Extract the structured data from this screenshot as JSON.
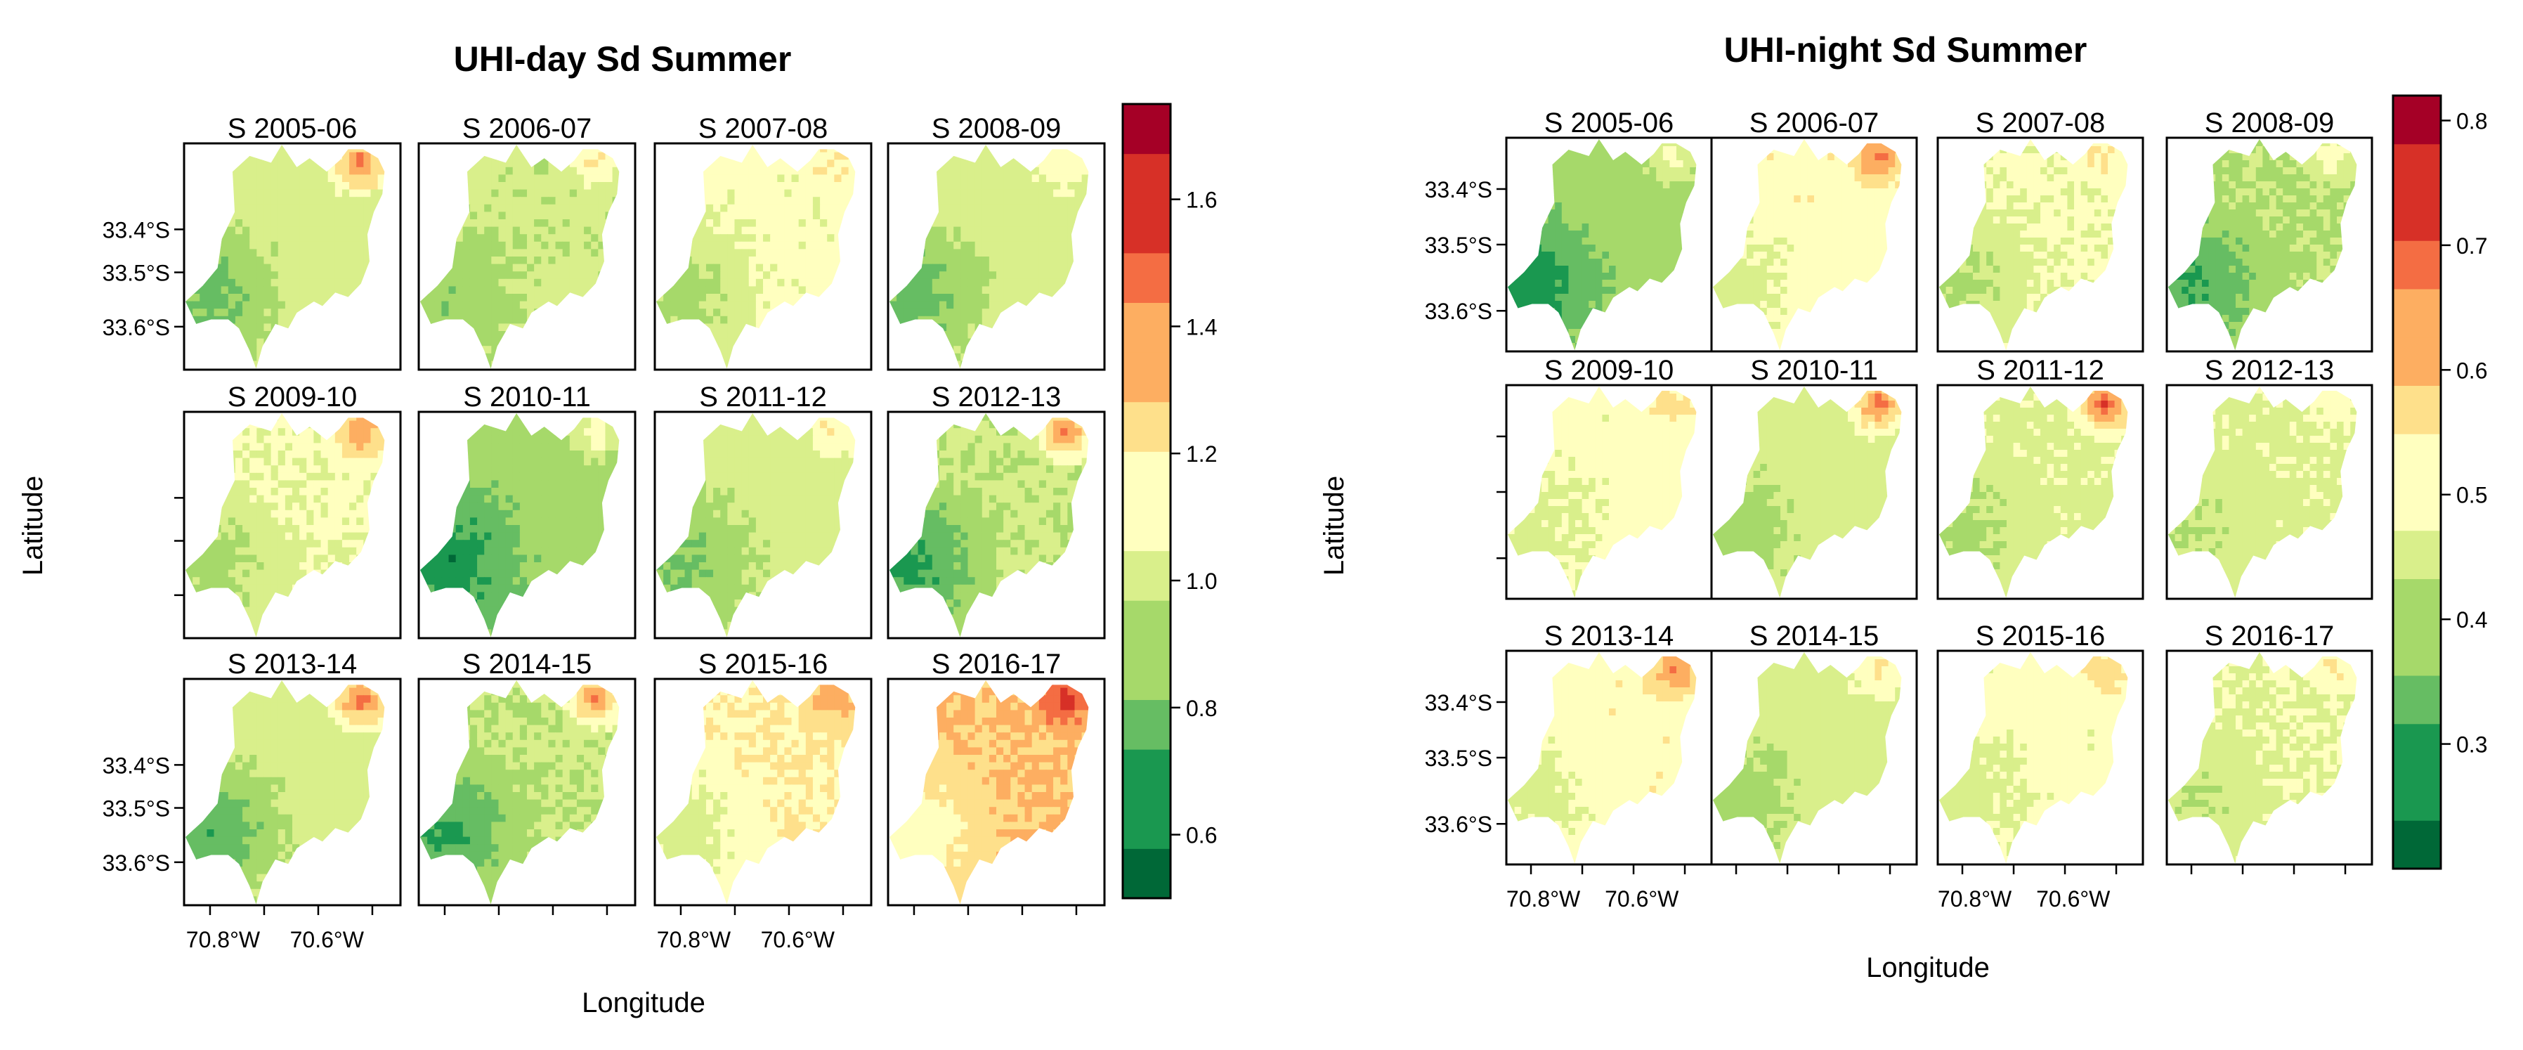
{
  "chart_data": [
    {
      "type": "heatmap",
      "title": "UHI-day Sd Summer",
      "xlabel": "Longitude",
      "ylabel": "Latitude",
      "x_ticks": [
        "70.8°W",
        "70.6°W"
      ],
      "y_ticks": [
        "33.4°S",
        "33.5°S",
        "33.6°S"
      ],
      "panels": [
        {
          "label": "S 2005-06",
          "mean": 1.02,
          "hotspot": 1.45,
          "west_low": 0.78
        },
        {
          "label": "S 2006-07",
          "mean": 0.98,
          "hotspot": 1.2,
          "west_low": 0.85
        },
        {
          "label": "S 2007-08",
          "mean": 1.1,
          "hotspot": 1.2,
          "west_low": 0.88
        },
        {
          "label": "S 2008-09",
          "mean": 1.02,
          "hotspot": 1.2,
          "west_low": 0.75
        },
        {
          "label": "S 2009-10",
          "mean": 1.08,
          "hotspot": 1.4,
          "west_low": 0.88
        },
        {
          "label": "S 2010-11",
          "mean": 0.88,
          "hotspot": 1.15,
          "west_low": 0.62
        },
        {
          "label": "S 2011-12",
          "mean": 1.0,
          "hotspot": 1.2,
          "west_low": 0.8
        },
        {
          "label": "S 2012-13",
          "mean": 0.97,
          "hotspot": 1.45,
          "west_low": 0.68
        },
        {
          "label": "S 2013-14",
          "mean": 1.02,
          "hotspot": 1.5,
          "west_low": 0.72
        },
        {
          "label": "S 2014-15",
          "mean": 0.96,
          "hotspot": 1.45,
          "west_low": 0.7
        },
        {
          "label": "S 2015-16",
          "mean": 1.18,
          "hotspot": 1.4,
          "west_low": 0.98
        },
        {
          "label": "S 2016-17",
          "mean": 1.3,
          "hotspot": 1.6,
          "west_low": 1.1
        }
      ],
      "colorbar": {
        "min": 0.5,
        "max": 1.75,
        "ticks": [
          "0.6",
          "0.8",
          "1.0",
          "1.2",
          "1.4",
          "1.6"
        ]
      }
    },
    {
      "type": "heatmap",
      "title": "UHI-night Sd Summer",
      "xlabel": "Longitude",
      "ylabel": "Latitude",
      "x_ticks": [
        "70.8°W",
        "70.6°W"
      ],
      "y_ticks": [
        "33.4°S",
        "33.5°S",
        "33.6°S"
      ],
      "panels": [
        {
          "label": "S 2005-06",
          "mean": 0.4,
          "hotspot": 0.5,
          "west_low": 0.26
        },
        {
          "label": "S 2006-07",
          "mean": 0.52,
          "hotspot": 0.68,
          "west_low": 0.45
        },
        {
          "label": "S 2007-08",
          "mean": 0.49,
          "hotspot": 0.56,
          "west_low": 0.4
        },
        {
          "label": "S 2008-09",
          "mean": 0.42,
          "hotspot": 0.52,
          "west_low": 0.3
        },
        {
          "label": "S 2009-10",
          "mean": 0.5,
          "hotspot": 0.56,
          "west_low": 0.46
        },
        {
          "label": "S 2010-11",
          "mean": 0.46,
          "hotspot": 0.68,
          "west_low": 0.38
        },
        {
          "label": "S 2011-12",
          "mean": 0.47,
          "hotspot": 0.72,
          "west_low": 0.4
        },
        {
          "label": "S 2012-13",
          "mean": 0.47,
          "hotspot": 0.52,
          "west_low": 0.42
        },
        {
          "label": "S 2013-14",
          "mean": 0.52,
          "hotspot": 0.66,
          "west_low": 0.45
        },
        {
          "label": "S 2014-15",
          "mean": 0.46,
          "hotspot": 0.56,
          "west_low": 0.38
        },
        {
          "label": "S 2015-16",
          "mean": 0.5,
          "hotspot": 0.58,
          "west_low": 0.45
        },
        {
          "label": "S 2016-17",
          "mean": 0.48,
          "hotspot": 0.55,
          "west_low": 0.42
        }
      ],
      "colorbar": {
        "min": 0.2,
        "max": 0.82,
        "ticks": [
          "0.3",
          "0.4",
          "0.5",
          "0.6",
          "0.7",
          "0.8"
        ]
      }
    }
  ],
  "palette": [
    "#006837",
    "#1a9850",
    "#66bd63",
    "#a6d96a",
    "#d9ef8b",
    "#ffffbf",
    "#fee08b",
    "#fdae61",
    "#f46d43",
    "#d73027",
    "#a50026"
  ]
}
